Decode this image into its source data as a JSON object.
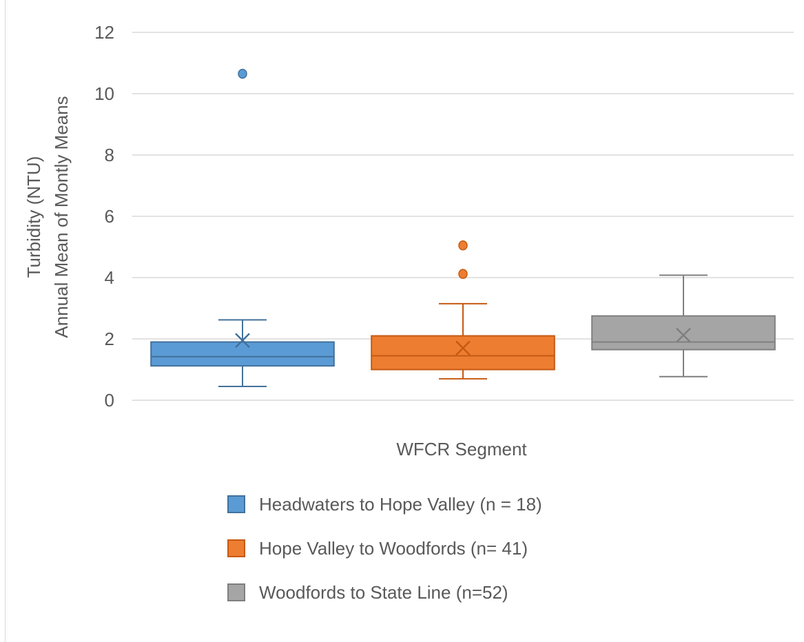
{
  "chart_data": {
    "type": "box",
    "xlabel": "WFCR Segment",
    "ylabel": [
      "Turbidity (NTU)",
      "Annual Mean of Montly Means"
    ],
    "ylim": [
      0,
      12
    ],
    "yticks": [
      0,
      2,
      4,
      6,
      8,
      10,
      12
    ],
    "grid": true,
    "legend_position": "bottom",
    "series": [
      {
        "name": "Headwaters to Hope Valley (n = 18)",
        "color": "#5b9bd5",
        "stroke": "#41719c",
        "min": 0.45,
        "q1": 1.12,
        "median": 1.42,
        "q3": 1.9,
        "max": 2.62,
        "mean": 1.95,
        "outliers": [
          10.65
        ]
      },
      {
        "name": "Hope Valley to Woodfords (n= 41)",
        "color": "#ed7d31",
        "stroke": "#c55a11",
        "min": 0.7,
        "q1": 1.0,
        "median": 1.45,
        "q3": 2.1,
        "max": 3.15,
        "mean": 1.7,
        "outliers": [
          4.12,
          5.05
        ]
      },
      {
        "name": "Woodfords to State Line (n=52)",
        "color": "#a5a5a5",
        "stroke": "#7f7f7f",
        "min": 0.77,
        "q1": 1.65,
        "median": 1.9,
        "q3": 2.75,
        "max": 4.08,
        "mean": 2.12,
        "outliers": []
      }
    ]
  }
}
